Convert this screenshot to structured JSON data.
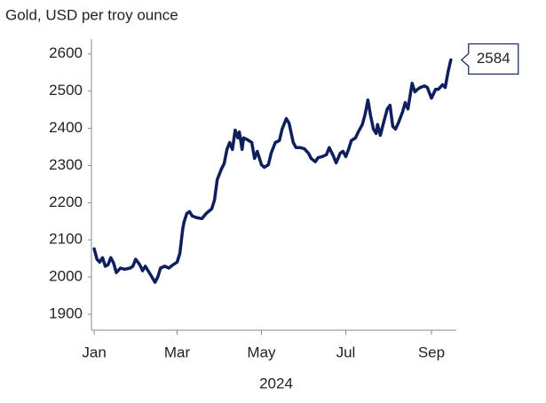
{
  "chart_data": {
    "type": "line",
    "title": "Gold, USD per troy ounce",
    "xlabel": "2024",
    "color": "#0d1f5c",
    "x": [
      0,
      2,
      4,
      6,
      8,
      10,
      12,
      14,
      16,
      19,
      22,
      26,
      28,
      30,
      33,
      35,
      37,
      39,
      41,
      44,
      46,
      48,
      51,
      54,
      57,
      60,
      62,
      64,
      65,
      67,
      69,
      71,
      74,
      78,
      81,
      85,
      87,
      89,
      92,
      94,
      96,
      98,
      100,
      102,
      104,
      105,
      107,
      108,
      111,
      114,
      116,
      118,
      121,
      123,
      126,
      128,
      131,
      134,
      136,
      139,
      141,
      144,
      146,
      149,
      152,
      155,
      157,
      160,
      162,
      165,
      168,
      170,
      173,
      175,
      178,
      180,
      182,
      184,
      186,
      189,
      191,
      194,
      196,
      198,
      200,
      202,
      204,
      205,
      207,
      209,
      212,
      214,
      216,
      218,
      220,
      223,
      225,
      227,
      230,
      232,
      234,
      236,
      239,
      241,
      244,
      247,
      249,
      252,
      254,
      256,
      258
    ],
    "values": [
      2076,
      2048,
      2040,
      2052,
      2029,
      2033,
      2052,
      2038,
      2012,
      2024,
      2021,
      2024,
      2029,
      2048,
      2033,
      2017,
      2029,
      2017,
      2005,
      1986,
      2000,
      2024,
      2029,
      2024,
      2033,
      2040,
      2064,
      2129,
      2148,
      2171,
      2176,
      2164,
      2160,
      2157,
      2171,
      2183,
      2207,
      2262,
      2290,
      2305,
      2343,
      2362,
      2343,
      2395,
      2374,
      2390,
      2343,
      2374,
      2369,
      2362,
      2319,
      2338,
      2302,
      2295,
      2302,
      2333,
      2362,
      2367,
      2398,
      2426,
      2414,
      2362,
      2348,
      2348,
      2345,
      2333,
      2319,
      2310,
      2321,
      2324,
      2329,
      2348,
      2326,
      2307,
      2333,
      2338,
      2324,
      2343,
      2367,
      2374,
      2390,
      2410,
      2438,
      2476,
      2433,
      2398,
      2386,
      2410,
      2381,
      2410,
      2452,
      2462,
      2405,
      2398,
      2414,
      2443,
      2469,
      2452,
      2521,
      2498,
      2505,
      2510,
      2514,
      2510,
      2481,
      2505,
      2505,
      2517,
      2510,
      2552,
      2584
    ],
    "xlim": [
      -2,
      262
    ],
    "xticks": [
      {
        "value": 0,
        "label": "Jan"
      },
      {
        "value": 60,
        "label": "Mar"
      },
      {
        "value": 121,
        "label": "May"
      },
      {
        "value": 182,
        "label": "Jul"
      },
      {
        "value": 244,
        "label": "Sep"
      }
    ],
    "ylim": [
      1857,
      2640
    ],
    "yticks": [
      1900,
      2000,
      2100,
      2200,
      2300,
      2400,
      2500,
      2600
    ]
  }
}
